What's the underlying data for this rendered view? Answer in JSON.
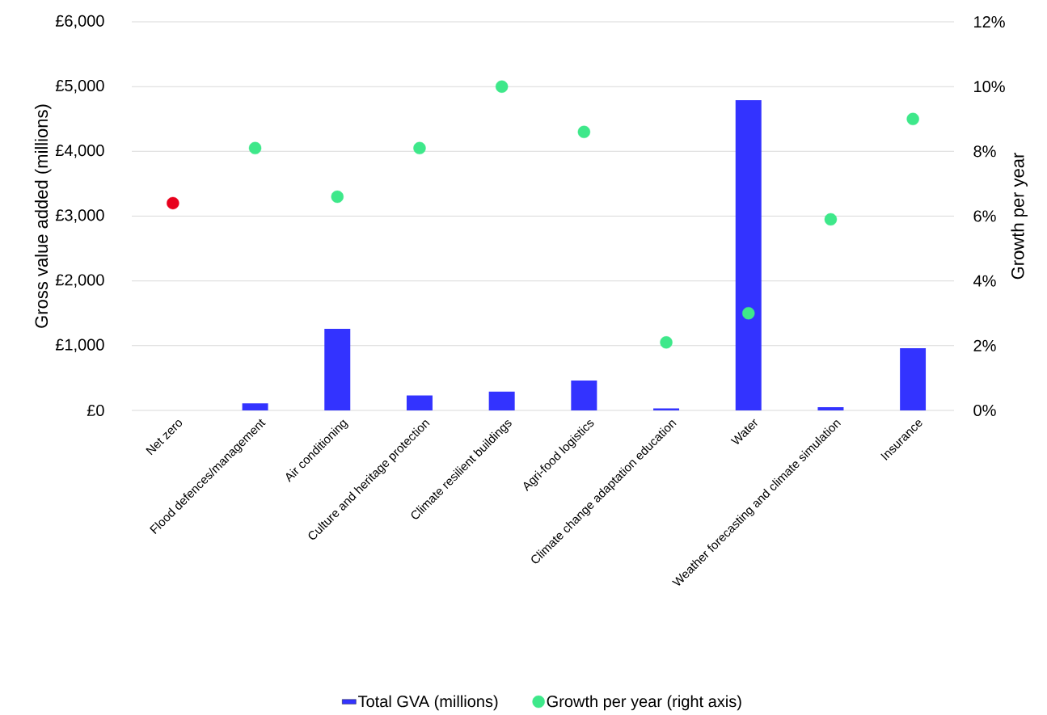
{
  "chart_data": {
    "type": "bar",
    "categories": [
      "Net zero",
      "Flood defences/management",
      "Air conditioning",
      "Culture and heritage protection",
      "Climate resilient buildings",
      "Agri-food logistics",
      "Climate change adaptation education",
      "Water",
      "Weather forecasting and climate simulation",
      "Insurance"
    ],
    "series": [
      {
        "name": "Total GVA (millions)",
        "color": "#3333ff",
        "values": [
          null,
          110,
          1260,
          230,
          290,
          460,
          30,
          4790,
          50,
          960
        ]
      },
      {
        "name": "Growth per year (right axis)",
        "type": "scatter",
        "axis": "y2",
        "color": "#3ee88a",
        "colors": [
          "#e8001c",
          "#3ee88a",
          "#3ee88a",
          "#3ee88a",
          "#3ee88a",
          "#3ee88a",
          "#3ee88a",
          "#3ee88a",
          "#3ee88a",
          "#3ee88a"
        ],
        "values": [
          6.4,
          8.1,
          6.6,
          8.1,
          10.0,
          8.6,
          2.1,
          3.0,
          5.9,
          9.0
        ]
      }
    ],
    "ylabel": "Gross value added (millions)",
    "y2label": "Growth per year",
    "ylim": [
      0,
      6000
    ],
    "yticks": [
      {
        "value": 0,
        "label": "£0"
      },
      {
        "value": 1000,
        "label": "£1,000"
      },
      {
        "value": 2000,
        "label": "£2,000"
      },
      {
        "value": 3000,
        "label": "£3,000"
      },
      {
        "value": 4000,
        "label": "£4,000"
      },
      {
        "value": 5000,
        "label": "£5,000"
      },
      {
        "value": 6000,
        "label": "£6,000"
      }
    ],
    "y2lim": [
      0,
      12
    ],
    "y2ticks": [
      {
        "value": 0,
        "label": "0%"
      },
      {
        "value": 2,
        "label": "2%"
      },
      {
        "value": 4,
        "label": "4%"
      },
      {
        "value": 6,
        "label": "6%"
      },
      {
        "value": 8,
        "label": "8%"
      },
      {
        "value": 10,
        "label": "10%"
      },
      {
        "value": 12,
        "label": "12%"
      }
    ],
    "grid": "y",
    "legend": "bottom",
    "marker": "circle"
  }
}
